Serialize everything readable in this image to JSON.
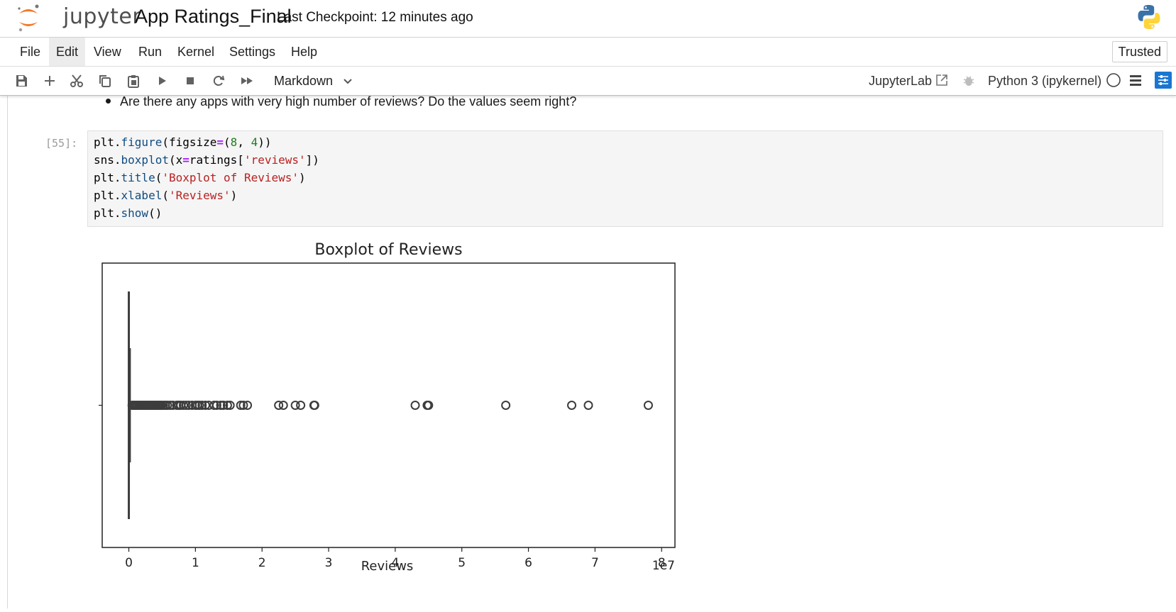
{
  "header": {
    "logo_text": "jupyter",
    "notebook_title": "App Ratings_Final",
    "checkpoint": "Last Checkpoint: 12 minutes ago",
    "logo_icon": "jupyter-logo-icon",
    "kernel_logo_icon": "python-logo-icon"
  },
  "menubar": {
    "items": [
      "File",
      "Edit",
      "View",
      "Run",
      "Kernel",
      "Settings",
      "Help"
    ],
    "trusted": "Trusted"
  },
  "toolbar": {
    "icons": [
      "save-icon",
      "add-cell-icon",
      "cut-icon",
      "copy-icon",
      "paste-icon",
      "run-icon",
      "stop-icon",
      "restart-icon",
      "fast-forward-icon"
    ],
    "cell_type": "Markdown",
    "jupyterlab_link": "JupyterLab",
    "kernel_name": "Python 3 (ipykernel)"
  },
  "colors": {
    "accent": "#1976d2",
    "string": "#ba2121",
    "number": "#1a7f1a",
    "operator": "#aa22ff",
    "function": "#0f4c81"
  },
  "markdown": {
    "bullet_text": "Are there any apps with very high number of reviews? Do the values seem right?"
  },
  "code_cell": {
    "prompt": "[55]:",
    "lines": [
      [
        {
          "t": "plt.",
          "c": ""
        },
        {
          "t": "figure",
          "c": "fn"
        },
        {
          "t": "(figsize",
          "c": ""
        },
        {
          "t": "=",
          "c": "op"
        },
        {
          "t": "(",
          "c": ""
        },
        {
          "t": "8",
          "c": "num"
        },
        {
          "t": ", ",
          "c": ""
        },
        {
          "t": "4",
          "c": "num"
        },
        {
          "t": "))",
          "c": ""
        }
      ],
      [
        {
          "t": "sns.",
          "c": ""
        },
        {
          "t": "boxplot",
          "c": "fn"
        },
        {
          "t": "(x",
          "c": ""
        },
        {
          "t": "=",
          "c": "op"
        },
        {
          "t": "ratings[",
          "c": ""
        },
        {
          "t": "'reviews'",
          "c": "str"
        },
        {
          "t": "])",
          "c": ""
        }
      ],
      [
        {
          "t": "plt.",
          "c": ""
        },
        {
          "t": "title",
          "c": "fn"
        },
        {
          "t": "(",
          "c": ""
        },
        {
          "t": "'Boxplot of Reviews'",
          "c": "str"
        },
        {
          "t": ")",
          "c": ""
        }
      ],
      [
        {
          "t": "plt.",
          "c": ""
        },
        {
          "t": "xlabel",
          "c": "fn"
        },
        {
          "t": "(",
          "c": ""
        },
        {
          "t": "'Reviews'",
          "c": "str"
        },
        {
          "t": ")",
          "c": ""
        }
      ],
      [
        {
          "t": "plt.",
          "c": ""
        },
        {
          "t": "show",
          "c": "fn"
        },
        {
          "t": "()",
          "c": ""
        }
      ]
    ]
  },
  "chart_data": {
    "type": "boxplot",
    "title": "Boxplot of Reviews",
    "xlabel": "Reviews",
    "ylabel": "",
    "x_scale_label": "1e7",
    "xlim": [
      -0.4,
      8.2
    ],
    "xticks": [
      0,
      1,
      2,
      3,
      4,
      5,
      6,
      7,
      8
    ],
    "grid": false,
    "legend": "none",
    "box": {
      "whisker_low": 0.0,
      "q1": 0.0,
      "median": 0.005,
      "q3": 0.03,
      "whisker_high": 0.08
    },
    "outliers": [
      0.05,
      0.07,
      0.09,
      0.11,
      0.13,
      0.15,
      0.17,
      0.19,
      0.21,
      0.23,
      0.25,
      0.27,
      0.29,
      0.31,
      0.33,
      0.35,
      0.37,
      0.39,
      0.41,
      0.43,
      0.45,
      0.47,
      0.49,
      0.52,
      0.55,
      0.58,
      0.62,
      0.66,
      0.72,
      0.75,
      0.78,
      0.82,
      0.86,
      0.9,
      0.95,
      1.0,
      1.03,
      1.06,
      1.1,
      1.15,
      1.2,
      1.28,
      1.32,
      1.38,
      1.42,
      1.48,
      1.52,
      1.68,
      1.72,
      1.78,
      2.25,
      2.32,
      2.5,
      2.58,
      2.78,
      2.79,
      4.3,
      4.48,
      4.5,
      5.66,
      6.65,
      6.9,
      7.8
    ],
    "units": "x 1e7 reviews"
  }
}
